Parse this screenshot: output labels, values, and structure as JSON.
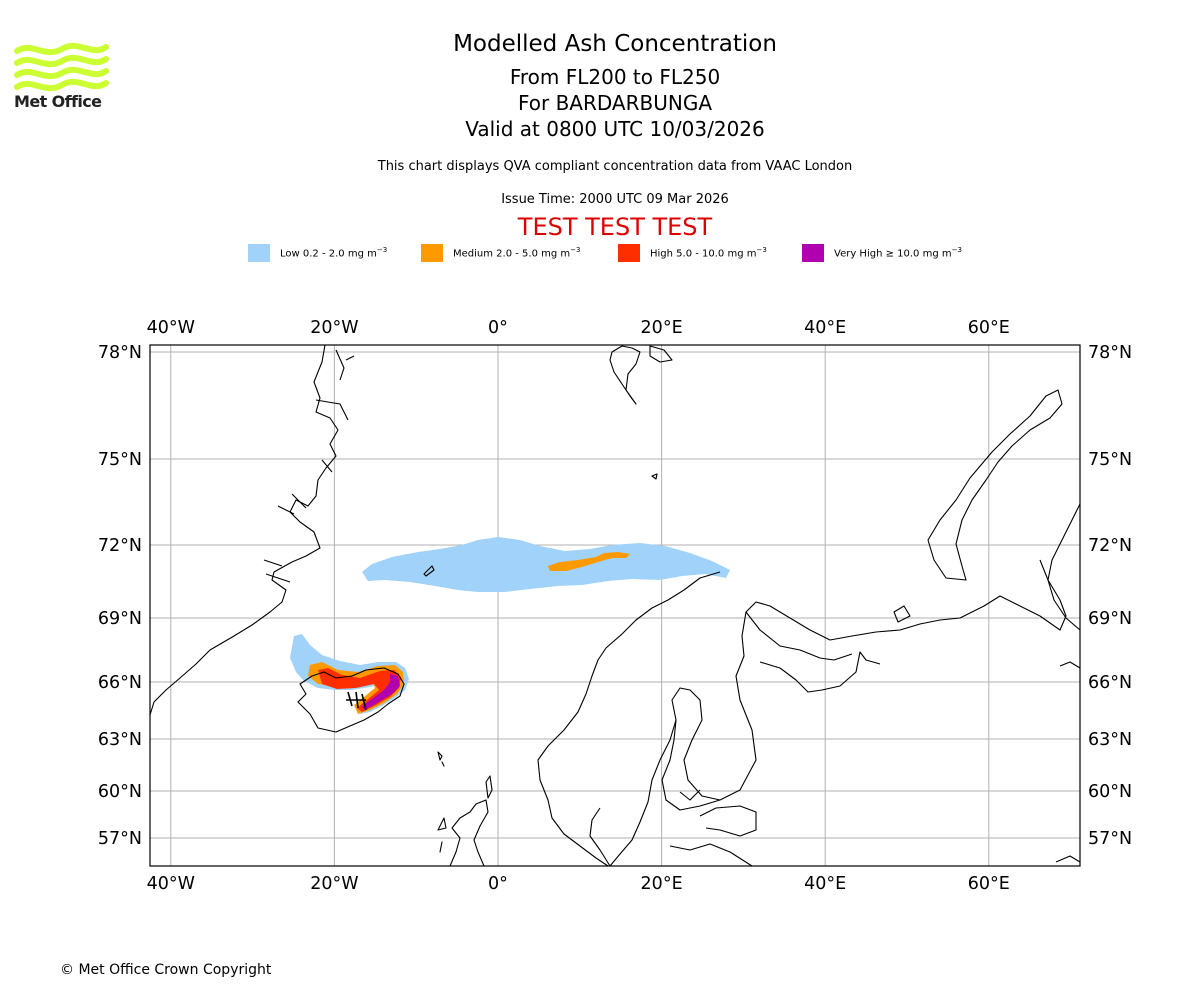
{
  "logo": {
    "text": "Met Office",
    "wave_color": "#ccff33"
  },
  "header": {
    "title": "Modelled Ash Concentration",
    "levels": "From FL200 to FL250",
    "volcano": "For BARDARBUNGA",
    "valid": "Valid at 0800 UTC 10/03/2026",
    "subtitle": "This chart displays QVA compliant concentration data from VAAC London",
    "issue": "Issue Time: 2000 UTC 09 Mar 2026",
    "test_banner": "TEST TEST TEST"
  },
  "legend": [
    {
      "label": "Low 0.2 - 2.0 mg m",
      "color": "#a0d2fa"
    },
    {
      "label": "Medium 2.0 - 5.0 mg m",
      "color": "#ff9900"
    },
    {
      "label": "High 5.0 - 10.0 mg m",
      "color": "#ff2e00"
    },
    {
      "label": "Very High ≥ 10.0 mg m",
      "color": "#b000b0"
    }
  ],
  "legend_unit_superscript": "−3",
  "map": {
    "lon_ticks": [
      "40°W",
      "20°W",
      "0°",
      "20°E",
      "40°E",
      "60°E"
    ],
    "lat_ticks": [
      "78°N",
      "75°N",
      "72°N",
      "69°N",
      "66°N",
      "63°N",
      "60°N",
      "57°N"
    ],
    "lon_values": [
      -40,
      -20,
      0,
      20,
      40,
      60
    ],
    "lat_values": [
      78,
      75,
      72,
      69,
      66,
      63,
      60,
      57
    ],
    "gridline_color": "#b0b0b0"
  },
  "footer": {
    "copyright": "© Met Office Crown Copyright"
  }
}
